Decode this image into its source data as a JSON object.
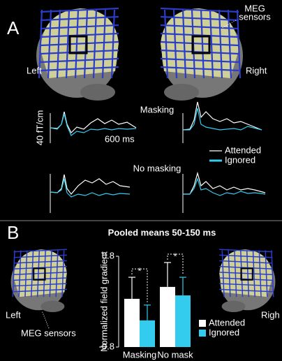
{
  "panel_a": {
    "label": "A",
    "meg_label": [
      "MEG",
      "sensors"
    ],
    "left": "Left",
    "right": "Right",
    "masking": "Masking",
    "no_masking": "No masking",
    "scale_y": "40 fT/cm",
    "scale_x": "600 ms",
    "legend": [
      {
        "name": "Attended",
        "color": "#ffffff"
      },
      {
        "name": "Ignored",
        "color": "#33ccee"
      }
    ]
  },
  "panel_b": {
    "label": "B",
    "left": "Left",
    "right": "Righ",
    "meg_sensors": "MEG sensors"
  },
  "chart_data": {
    "type": "bar",
    "title": "Pooled means 50-150 ms",
    "y_label": "Normalized field gradient",
    "categories": [
      "Masking",
      "No mask"
    ],
    "series": [
      {
        "name": "Attended",
        "color": "#ffffff",
        "values": [
          0.05,
          0.26
        ],
        "errors": [
          0.38,
          0.43
        ]
      },
      {
        "name": "Ignored",
        "color": "#33ccee",
        "values": [
          -0.33,
          0.11
        ],
        "errors": [
          0.27,
          0.32
        ]
      }
    ],
    "ylim": [
      -0.8,
      0.8
    ],
    "yticks": [
      -0.8,
      0.8
    ],
    "annotations": [
      "*",
      "*"
    ]
  }
}
